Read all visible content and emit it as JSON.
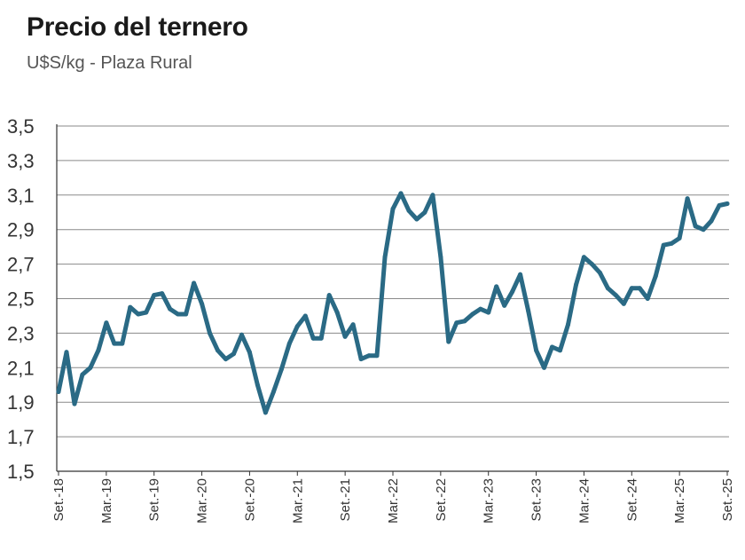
{
  "chart_data": {
    "type": "line",
    "title": "Precio del ternero",
    "subtitle": "U$S/kg - Plaza Rural",
    "xlabel": "",
    "ylabel": "",
    "ylim": [
      1.5,
      3.5
    ],
    "yticks": [
      "3,5",
      "3,3",
      "3,1",
      "2,9",
      "2,7",
      "2,5",
      "2,3",
      "2,1",
      "1,9",
      "1,7",
      "1,5"
    ],
    "ytick_values": [
      3.5,
      3.3,
      3.1,
      2.9,
      2.7,
      2.5,
      2.3,
      2.1,
      1.9,
      1.7,
      1.5
    ],
    "xticks": [
      "Set.-18",
      "Mar.-19",
      "Set.-19",
      "Mar.-20",
      "Set.-20",
      "Mar.-21",
      "Set.-21",
      "Mar.-22",
      "Set.-22",
      "Mar.-23",
      "Set.-23",
      "Mar.-24",
      "Set.-24",
      "Mar.-25",
      "Set.-25"
    ],
    "grid": true,
    "color": "#2a6a85",
    "series": [
      {
        "name": "Precio del ternero",
        "values": [
          1.96,
          2.19,
          1.89,
          2.06,
          2.1,
          2.2,
          2.36,
          2.24,
          2.24,
          2.45,
          2.41,
          2.42,
          2.52,
          2.53,
          2.44,
          2.41,
          2.41,
          2.59,
          2.47,
          2.3,
          2.2,
          2.15,
          2.18,
          2.29,
          2.19,
          2.0,
          1.84,
          1.96,
          2.09,
          2.24,
          2.34,
          2.4,
          2.27,
          2.27,
          2.52,
          2.42,
          2.28,
          2.35,
          2.15,
          2.17,
          2.17,
          2.74,
          3.02,
          3.11,
          3.01,
          2.96,
          3.0,
          3.1,
          2.74,
          2.25,
          2.36,
          2.37,
          2.41,
          2.44,
          2.42,
          2.57,
          2.46,
          2.54,
          2.64,
          2.43,
          2.2,
          2.1,
          2.22,
          2.2,
          2.35,
          2.58,
          2.74,
          2.7,
          2.65,
          2.56,
          2.52,
          2.47,
          2.56,
          2.56,
          2.5,
          2.63,
          2.81,
          2.82,
          2.85,
          3.08,
          2.92,
          2.9,
          2.95,
          3.04,
          3.05
        ]
      }
    ]
  }
}
